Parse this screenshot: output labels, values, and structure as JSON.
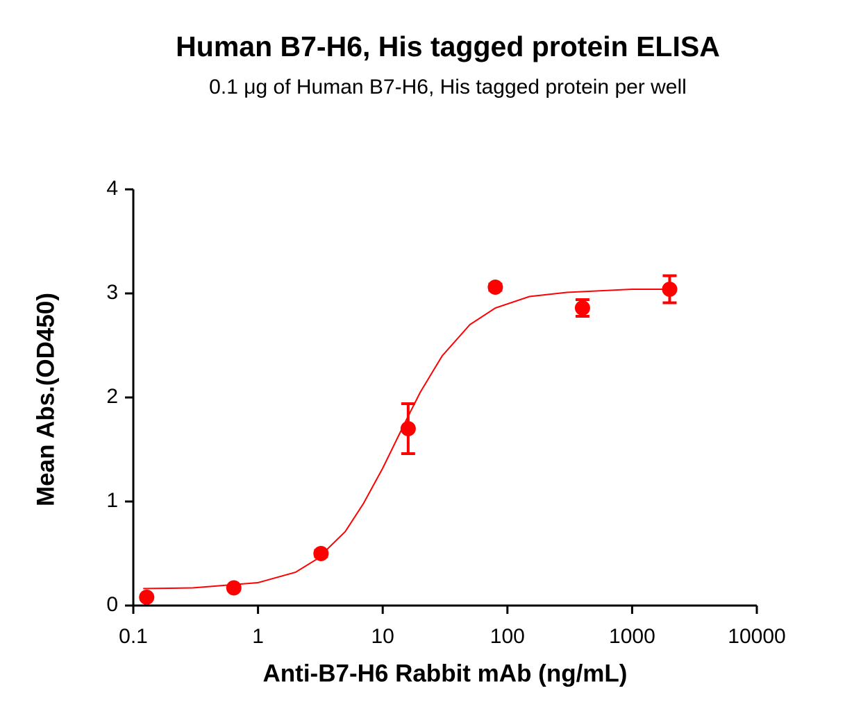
{
  "chart_data": {
    "type": "scatter",
    "title": "Human B7-H6, His tagged protein ELISA",
    "subtitle": "0.1 μg of Human B7-H6, His tagged protein per well",
    "x_label": "Anti-B7-H6 Rabbit mAb (ng/mL)",
    "y_label": "Mean Abs.(OD450)",
    "xscale": "log",
    "xlim": [
      0.1,
      10000
    ],
    "xticks": [
      0.1,
      1,
      10,
      100,
      1000,
      10000
    ],
    "ylim": [
      0,
      4
    ],
    "yticks": [
      0,
      1,
      2,
      3,
      4
    ],
    "series": [
      {
        "color": "#ff0000",
        "x": [
          0.128,
          0.64,
          3.2,
          16,
          80,
          400,
          2000
        ],
        "values": [
          0.08,
          0.17,
          0.5,
          1.7,
          3.06,
          2.86,
          3.04
        ],
        "errors": [
          0.02,
          0.02,
          0.03,
          0.24,
          0.03,
          0.08,
          0.13
        ]
      }
    ],
    "fit": {
      "color": "#ff0000",
      "x": [
        0.12,
        0.3,
        1,
        2,
        3,
        5,
        7,
        10,
        13,
        16,
        20,
        30,
        50,
        80,
        150,
        300,
        1000,
        2000
      ],
      "values": [
        0.163,
        0.17,
        0.22,
        0.32,
        0.45,
        0.71,
        0.98,
        1.32,
        1.6,
        1.82,
        2.05,
        2.4,
        2.7,
        2.86,
        2.97,
        3.01,
        3.04,
        3.04
      ]
    }
  }
}
